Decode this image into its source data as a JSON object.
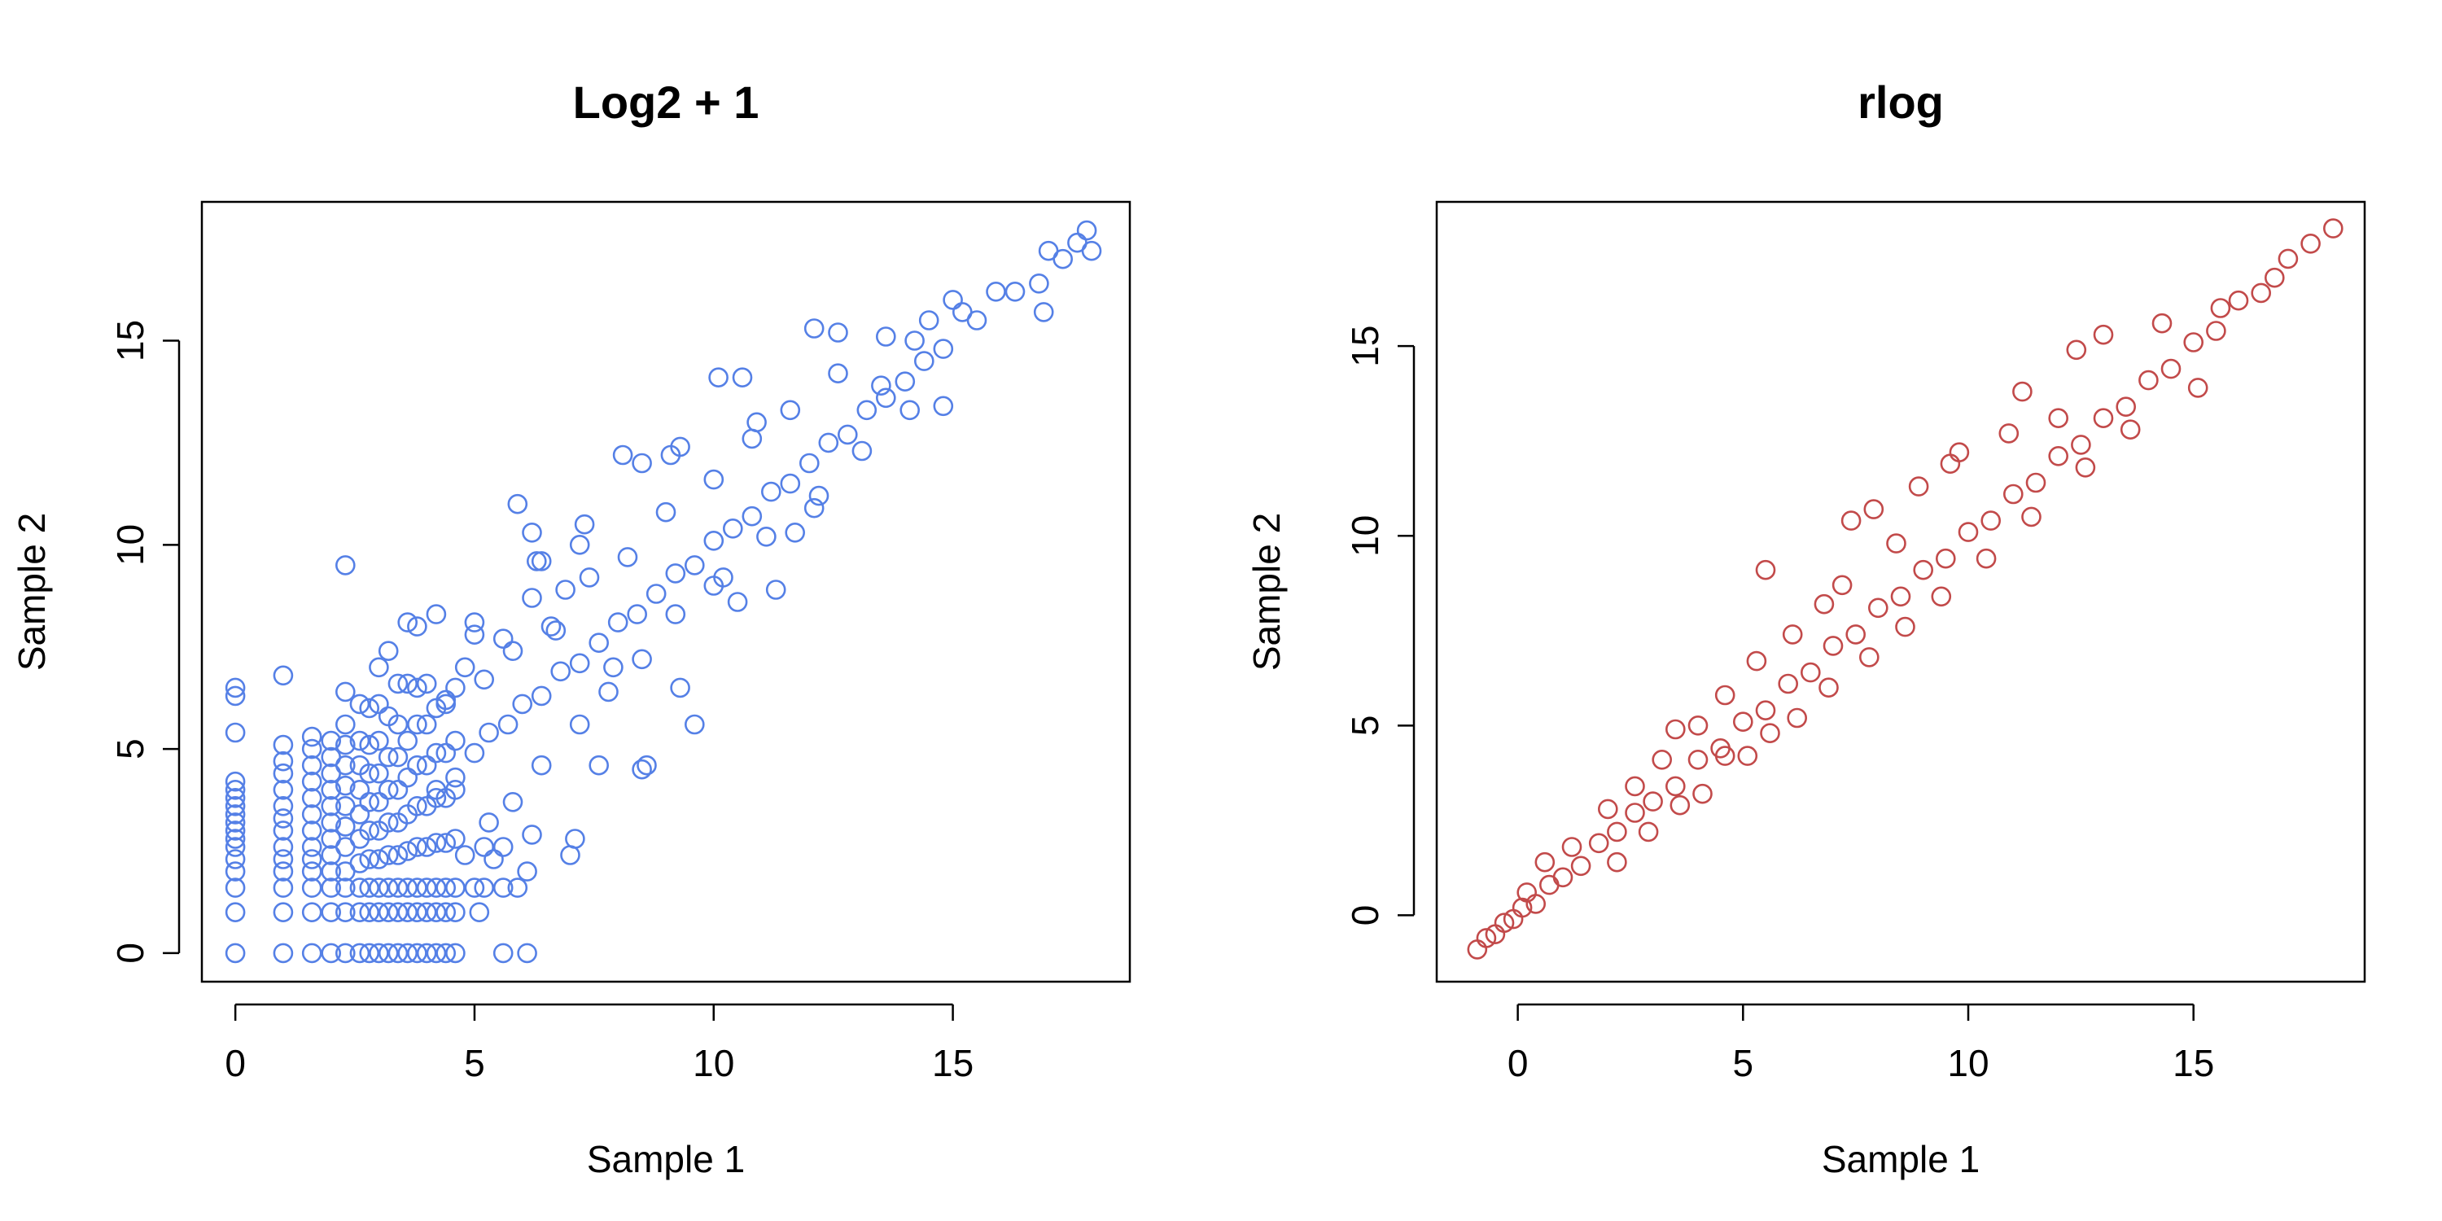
{
  "chart_data": [
    {
      "type": "scatter",
      "title": "Log2 + 1",
      "xlabel": "Sample 1",
      "ylabel": "Sample 2",
      "xlim": [
        -0.7,
        18.7
      ],
      "ylim": [
        -0.7,
        18.4
      ],
      "xticks": [
        0,
        5,
        10,
        15
      ],
      "yticks": [
        0,
        5,
        10,
        15
      ],
      "xtick_labels": [
        "0",
        "5",
        "10",
        "15"
      ],
      "ytick_labels": [
        "0",
        "5",
        "10",
        "15"
      ],
      "color": "#5580E6",
      "points": [
        [
          0,
          0
        ],
        [
          0,
          1
        ],
        [
          0,
          1.6
        ],
        [
          0,
          2
        ],
        [
          0,
          2.3
        ],
        [
          0,
          2.6
        ],
        [
          0,
          2.8
        ],
        [
          0,
          3
        ],
        [
          0,
          3.2
        ],
        [
          0,
          3.4
        ],
        [
          0,
          3.6
        ],
        [
          0,
          3.8
        ],
        [
          0,
          4
        ],
        [
          0,
          4.2
        ],
        [
          0,
          5.4
        ],
        [
          0,
          6.3
        ],
        [
          0,
          6.5
        ],
        [
          1,
          0
        ],
        [
          1,
          1
        ],
        [
          1,
          1.6
        ],
        [
          1,
          2
        ],
        [
          1,
          2.3
        ],
        [
          1,
          2.6
        ],
        [
          1,
          3
        ],
        [
          1,
          3.3
        ],
        [
          1,
          3.6
        ],
        [
          1,
          4
        ],
        [
          1,
          4.4
        ],
        [
          1,
          4.7
        ],
        [
          1,
          5.1
        ],
        [
          1,
          6.8
        ],
        [
          1.6,
          0
        ],
        [
          1.6,
          1
        ],
        [
          1.6,
          1.6
        ],
        [
          1.6,
          2
        ],
        [
          1.6,
          2.3
        ],
        [
          1.6,
          2.6
        ],
        [
          1.6,
          3
        ],
        [
          1.6,
          3.4
        ],
        [
          1.6,
          3.8
        ],
        [
          1.6,
          4.2
        ],
        [
          1.6,
          4.6
        ],
        [
          1.6,
          5
        ],
        [
          1.6,
          5.3
        ],
        [
          2,
          0
        ],
        [
          2,
          1
        ],
        [
          2,
          1.6
        ],
        [
          2,
          2
        ],
        [
          2,
          2.4
        ],
        [
          2,
          2.8
        ],
        [
          2,
          3.2
        ],
        [
          2,
          3.6
        ],
        [
          2,
          4
        ],
        [
          2,
          4.4
        ],
        [
          2,
          4.8
        ],
        [
          2,
          5.2
        ],
        [
          2.3,
          0
        ],
        [
          2.3,
          1
        ],
        [
          2.3,
          1.6
        ],
        [
          2.3,
          2
        ],
        [
          2.3,
          2.6
        ],
        [
          2.3,
          3.1
        ],
        [
          2.3,
          3.6
        ],
        [
          2.3,
          4.1
        ],
        [
          2.3,
          4.6
        ],
        [
          2.3,
          5.1
        ],
        [
          2.3,
          5.6
        ],
        [
          2.3,
          6.4
        ],
        [
          2.3,
          9.5
        ],
        [
          2.6,
          0
        ],
        [
          2.6,
          1
        ],
        [
          2.6,
          1.6
        ],
        [
          2.6,
          2.2
        ],
        [
          2.6,
          2.8
        ],
        [
          2.6,
          3.4
        ],
        [
          2.6,
          4
        ],
        [
          2.6,
          4.6
        ],
        [
          2.6,
          5.2
        ],
        [
          2.6,
          6.1
        ],
        [
          2.8,
          0
        ],
        [
          2.8,
          1
        ],
        [
          2.8,
          1.6
        ],
        [
          2.8,
          2.3
        ],
        [
          2.8,
          3
        ],
        [
          2.8,
          3.7
        ],
        [
          2.8,
          4.4
        ],
        [
          2.8,
          5.1
        ],
        [
          2.8,
          6
        ],
        [
          3,
          0
        ],
        [
          3,
          1
        ],
        [
          3,
          1.6
        ],
        [
          3,
          2.3
        ],
        [
          3,
          3
        ],
        [
          3,
          3.7
        ],
        [
          3,
          4.4
        ],
        [
          3,
          5.2
        ],
        [
          3,
          6.1
        ],
        [
          3,
          7
        ],
        [
          3.2,
          0
        ],
        [
          3.2,
          1
        ],
        [
          3.2,
          1.6
        ],
        [
          3.2,
          2.4
        ],
        [
          3.2,
          3.2
        ],
        [
          3.2,
          4
        ],
        [
          3.2,
          4.8
        ],
        [
          3.2,
          5.8
        ],
        [
          3.2,
          7.4
        ],
        [
          3.4,
          0
        ],
        [
          3.4,
          1
        ],
        [
          3.4,
          1.6
        ],
        [
          3.4,
          2.4
        ],
        [
          3.4,
          3.2
        ],
        [
          3.4,
          4
        ],
        [
          3.4,
          4.8
        ],
        [
          3.4,
          5.6
        ],
        [
          3.4,
          6.6
        ],
        [
          3.6,
          0
        ],
        [
          3.6,
          1
        ],
        [
          3.6,
          1.6
        ],
        [
          3.6,
          2.5
        ],
        [
          3.6,
          3.4
        ],
        [
          3.6,
          4.3
        ],
        [
          3.6,
          5.2
        ],
        [
          3.6,
          6.6
        ],
        [
          3.6,
          8.1
        ],
        [
          3.8,
          0
        ],
        [
          3.8,
          1
        ],
        [
          3.8,
          1.6
        ],
        [
          3.8,
          2.6
        ],
        [
          3.8,
          3.6
        ],
        [
          3.8,
          4.6
        ],
        [
          3.8,
          5.6
        ],
        [
          3.8,
          6.5
        ],
        [
          3.8,
          8.0
        ],
        [
          4,
          0
        ],
        [
          4,
          1
        ],
        [
          4,
          1.6
        ],
        [
          4,
          2.6
        ],
        [
          4,
          3.6
        ],
        [
          4,
          4.6
        ],
        [
          4,
          5.6
        ],
        [
          4,
          6.6
        ],
        [
          4.2,
          0
        ],
        [
          4.2,
          1
        ],
        [
          4.2,
          1.6
        ],
        [
          4.2,
          2.7
        ],
        [
          4.2,
          3.8
        ],
        [
          4.2,
          4.9
        ],
        [
          4.2,
          6
        ],
        [
          4.2,
          8.3
        ],
        [
          4.4,
          0
        ],
        [
          4.4,
          1
        ],
        [
          4.4,
          1.6
        ],
        [
          4.4,
          2.7
        ],
        [
          4.4,
          3.8
        ],
        [
          4.4,
          4.9
        ],
        [
          4.4,
          6.1
        ],
        [
          4.6,
          0
        ],
        [
          4.6,
          1
        ],
        [
          4.6,
          1.6
        ],
        [
          4.6,
          2.8
        ],
        [
          4.6,
          4
        ],
        [
          4.6,
          5.2
        ],
        [
          4.6,
          6.5
        ],
        [
          5.0,
          1.6
        ],
        [
          5.2,
          1.6
        ],
        [
          5.6,
          0
        ],
        [
          5.6,
          1.6
        ],
        [
          6.1,
          0
        ],
        [
          6.1,
          2.0
        ],
        [
          5.4,
          2.3
        ],
        [
          4.8,
          2.4
        ],
        [
          5.9,
          1.6
        ],
        [
          5.1,
          1.0
        ],
        [
          5.6,
          2.6
        ],
        [
          4.8,
          7.0
        ],
        [
          5.0,
          7.8
        ],
        [
          5.0,
          8.1
        ],
        [
          5.6,
          7.7
        ],
        [
          6.2,
          8.7
        ],
        [
          6.7,
          7.9
        ],
        [
          6.9,
          8.9
        ],
        [
          7.2,
          10.0
        ],
        [
          7.3,
          10.5
        ],
        [
          6.3,
          9.6
        ],
        [
          6.4,
          9.6
        ],
        [
          5.9,
          11.0
        ],
        [
          6.2,
          10.3
        ],
        [
          7.6,
          4.6
        ],
        [
          8.5,
          4.5
        ],
        [
          8.6,
          4.6
        ],
        [
          7.1,
          2.8
        ],
        [
          7.0,
          2.4
        ],
        [
          5.2,
          2.6
        ],
        [
          6.2,
          2.9
        ],
        [
          7.9,
          7.0
        ],
        [
          9.3,
          6.5
        ],
        [
          9.6,
          5.6
        ],
        [
          10.0,
          9.0
        ],
        [
          10.5,
          8.6
        ],
        [
          8.1,
          12.2
        ],
        [
          8.5,
          12.0
        ],
        [
          9.1,
          12.2
        ],
        [
          9.3,
          12.4
        ],
        [
          10.1,
          14.1
        ],
        [
          10.6,
          14.1
        ],
        [
          10.9,
          13.0
        ],
        [
          11.3,
          8.9
        ],
        [
          11.7,
          10.3
        ],
        [
          12.1,
          10.9
        ],
        [
          12.1,
          15.3
        ],
        [
          12.6,
          15.2
        ],
        [
          13.5,
          13.9
        ],
        [
          14.8,
          13.4
        ],
        [
          14.5,
          15.5
        ],
        [
          15.0,
          16.0
        ],
        [
          15.5,
          15.5
        ],
        [
          15.9,
          16.2
        ],
        [
          16.3,
          16.2
        ],
        [
          16.8,
          16.4
        ],
        [
          16.9,
          15.7
        ],
        [
          17.3,
          17.0
        ],
        [
          17.6,
          17.4
        ],
        [
          17.8,
          17.7
        ],
        [
          17.9,
          17.2
        ],
        [
          17.0,
          17.2
        ],
        [
          15.2,
          15.7
        ],
        [
          14.2,
          15.0
        ],
        [
          4.2,
          4.0
        ],
        [
          4.6,
          4.3
        ],
        [
          5.0,
          4.9
        ],
        [
          5.3,
          5.4
        ],
        [
          5.7,
          5.6
        ],
        [
          6.0,
          6.1
        ],
        [
          6.4,
          6.3
        ],
        [
          6.8,
          6.9
        ],
        [
          7.2,
          7.1
        ],
        [
          7.6,
          7.6
        ],
        [
          8.0,
          8.1
        ],
        [
          8.4,
          8.3
        ],
        [
          8.8,
          8.8
        ],
        [
          9.2,
          9.3
        ],
        [
          9.6,
          9.5
        ],
        [
          10.0,
          10.1
        ],
        [
          10.4,
          10.4
        ],
        [
          10.8,
          10.7
        ],
        [
          11.2,
          11.3
        ],
        [
          11.6,
          11.5
        ],
        [
          12.0,
          12.0
        ],
        [
          12.4,
          12.5
        ],
        [
          12.8,
          12.7
        ],
        [
          13.2,
          13.3
        ],
        [
          13.6,
          13.6
        ],
        [
          14.0,
          14.0
        ],
        [
          14.4,
          14.5
        ],
        [
          14.8,
          14.8
        ],
        [
          5.3,
          3.2
        ],
        [
          5.8,
          3.7
        ],
        [
          6.4,
          4.6
        ],
        [
          7.2,
          5.6
        ],
        [
          7.8,
          6.4
        ],
        [
          8.5,
          7.2
        ],
        [
          9.2,
          8.3
        ],
        [
          10.2,
          9.2
        ],
        [
          11.1,
          10.2
        ],
        [
          12.2,
          11.2
        ],
        [
          13.1,
          12.3
        ],
        [
          14.1,
          13.3
        ],
        [
          4.4,
          6.2
        ],
        [
          5.2,
          6.7
        ],
        [
          5.8,
          7.4
        ],
        [
          6.6,
          8.0
        ],
        [
          7.4,
          9.2
        ],
        [
          8.2,
          9.7
        ],
        [
          9.0,
          10.8
        ],
        [
          10.0,
          11.6
        ],
        [
          10.8,
          12.6
        ],
        [
          11.6,
          13.3
        ],
        [
          12.6,
          14.2
        ],
        [
          13.6,
          15.1
        ]
      ]
    },
    {
      "type": "scatter",
      "title": "rlog",
      "xlabel": "Sample 1",
      "ylabel": "Sample 2",
      "xlim": [
        -1.8,
        18.8
      ],
      "ylim": [
        -1.75,
        18.8
      ],
      "xticks": [
        0,
        5,
        10,
        15
      ],
      "yticks": [
        0,
        5,
        10,
        15
      ],
      "xtick_labels": [
        "0",
        "5",
        "10",
        "15"
      ],
      "ytick_labels": [
        "0",
        "5",
        "10",
        "15"
      ],
      "color": "#C24A4A",
      "points": [
        [
          -0.9,
          -0.9
        ],
        [
          -0.7,
          -0.6
        ],
        [
          -0.5,
          -0.5
        ],
        [
          -0.3,
          -0.2
        ],
        [
          -0.1,
          -0.1
        ],
        [
          0.1,
          0.2
        ],
        [
          0.4,
          0.3
        ],
        [
          0.7,
          0.8
        ],
        [
          1.0,
          1.0
        ],
        [
          1.4,
          1.3
        ],
        [
          1.8,
          1.9
        ],
        [
          2.2,
          2.2
        ],
        [
          2.6,
          2.7
        ],
        [
          3.0,
          3.0
        ],
        [
          3.5,
          3.4
        ],
        [
          4.0,
          4.1
        ],
        [
          4.5,
          4.4
        ],
        [
          5.0,
          5.1
        ],
        [
          5.5,
          5.4
        ],
        [
          6.0,
          6.1
        ],
        [
          6.5,
          6.4
        ],
        [
          7.0,
          7.1
        ],
        [
          7.5,
          7.4
        ],
        [
          8.0,
          8.1
        ],
        [
          8.5,
          8.4
        ],
        [
          9.0,
          9.1
        ],
        [
          9.5,
          9.4
        ],
        [
          10.0,
          10.1
        ],
        [
          10.5,
          10.4
        ],
        [
          11.0,
          11.1
        ],
        [
          11.5,
          11.4
        ],
        [
          12.0,
          12.1
        ],
        [
          12.5,
          12.4
        ],
        [
          13.0,
          13.1
        ],
        [
          13.5,
          13.4
        ],
        [
          14.0,
          14.1
        ],
        [
          14.5,
          14.4
        ],
        [
          15.0,
          15.1
        ],
        [
          15.5,
          15.4
        ],
        [
          16.0,
          16.2
        ],
        [
          16.5,
          16.4
        ],
        [
          17.1,
          17.3
        ],
        [
          17.6,
          17.7
        ],
        [
          18.1,
          18.1
        ],
        [
          4.1,
          3.2
        ],
        [
          4.6,
          4.2
        ],
        [
          5.1,
          4.2
        ],
        [
          5.6,
          4.8
        ],
        [
          6.2,
          5.2
        ],
        [
          6.9,
          6.0
        ],
        [
          7.8,
          6.8
        ],
        [
          8.6,
          7.6
        ],
        [
          9.4,
          8.4
        ],
        [
          10.4,
          9.4
        ],
        [
          11.4,
          10.5
        ],
        [
          12.6,
          11.8
        ],
        [
          13.6,
          12.8
        ],
        [
          15.1,
          13.9
        ],
        [
          3.2,
          4.1
        ],
        [
          4.0,
          5.0
        ],
        [
          4.6,
          5.8
        ],
        [
          5.3,
          6.7
        ],
        [
          5.5,
          9.1
        ],
        [
          6.1,
          7.4
        ],
        [
          6.8,
          8.2
        ],
        [
          7.2,
          8.7
        ],
        [
          7.4,
          10.4
        ],
        [
          7.9,
          10.7
        ],
        [
          8.4,
          9.8
        ],
        [
          8.9,
          11.3
        ],
        [
          9.6,
          11.9
        ],
        [
          9.8,
          12.2
        ],
        [
          10.9,
          12.7
        ],
        [
          11.2,
          13.8
        ],
        [
          12.0,
          13.1
        ],
        [
          12.4,
          14.9
        ],
        [
          13.0,
          15.3
        ],
        [
          14.3,
          15.6
        ],
        [
          15.6,
          16.0
        ],
        [
          16.8,
          16.8
        ],
        [
          0.2,
          0.6
        ],
        [
          0.6,
          1.4
        ],
        [
          1.2,
          1.8
        ],
        [
          2.0,
          2.8
        ],
        [
          2.6,
          3.4
        ],
        [
          3.5,
          4.9
        ],
        [
          2.2,
          1.4
        ],
        [
          2.9,
          2.2
        ],
        [
          3.6,
          2.9
        ]
      ]
    }
  ]
}
